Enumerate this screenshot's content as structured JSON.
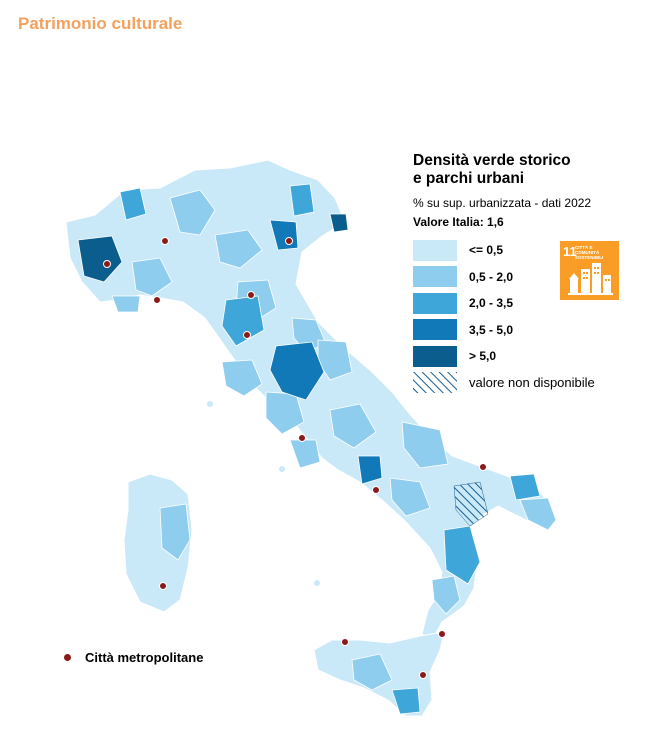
{
  "header": {
    "title": "Patrimonio culturale"
  },
  "legend": {
    "title_line1": "Densità verde storico",
    "title_line2": "e parchi urbani",
    "subtitle": "% su sup. urbanizzata  - dati 2022",
    "national_value": "Valore Italia: 1,6",
    "classes": [
      {
        "label": "<= 0,5",
        "color": "#c9e9f8"
      },
      {
        "label": "0,5 - 2,0",
        "color": "#8fcdee"
      },
      {
        "label": "2,0 - 3,5",
        "color": "#3fa6da"
      },
      {
        "label": "3,5 - 5,0",
        "color": "#1179b8"
      },
      {
        "label": "> 5,0",
        "color": "#0b5d8e"
      }
    ],
    "not_available": "valore non disponibile"
  },
  "sdg_badge": {
    "number": "11",
    "text": "CITTÀ E COMUNITÀ SOSTENIBILI",
    "color": "#f99d26"
  },
  "metro_legend": {
    "label": "Città metropolitane",
    "dot_color": "#8b1a1a"
  }
}
